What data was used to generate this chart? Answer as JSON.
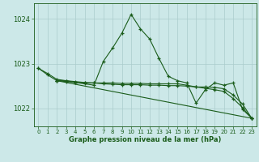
{
  "xlabel": "Graphe pression niveau de la mer (hPa)",
  "bg_color": "#cce8e8",
  "grid_color": "#aacccc",
  "line_color": "#1a5c1a",
  "ylim": [
    1021.6,
    1024.35
  ],
  "xlim": [
    -0.5,
    23.5
  ],
  "yticks": [
    1022,
    1023,
    1024
  ],
  "xticks": [
    0,
    1,
    2,
    3,
    4,
    5,
    6,
    7,
    8,
    9,
    10,
    11,
    12,
    13,
    14,
    15,
    16,
    17,
    18,
    19,
    20,
    21,
    22,
    23
  ],
  "series1_x": [
    0,
    1,
    2,
    3,
    4,
    5,
    6,
    7,
    8,
    9,
    10,
    11,
    12,
    13,
    14,
    15,
    16,
    17,
    18,
    19,
    20,
    21,
    22,
    23
  ],
  "series1_y": [
    1022.9,
    1022.75,
    1022.62,
    1022.62,
    1022.58,
    1022.55,
    1022.52,
    1023.05,
    1023.35,
    1023.68,
    1024.1,
    1023.78,
    1023.55,
    1023.12,
    1022.72,
    1022.62,
    1022.57,
    1022.12,
    1022.42,
    1022.57,
    1022.52,
    1022.57,
    1021.98,
    1021.78
  ],
  "series2_x": [
    0,
    1,
    2,
    3,
    4,
    5,
    6,
    7,
    8,
    9,
    10,
    11,
    12,
    13,
    14,
    15,
    16,
    17,
    18,
    19,
    20,
    21,
    22,
    23
  ],
  "series2_y": [
    1022.9,
    1022.78,
    1022.65,
    1022.62,
    1022.6,
    1022.58,
    1022.57,
    1022.57,
    1022.57,
    1022.56,
    1022.56,
    1022.56,
    1022.55,
    1022.55,
    1022.55,
    1022.55,
    1022.52,
    1022.48,
    1022.48,
    1022.47,
    1022.44,
    1022.3,
    1022.1,
    1021.78
  ],
  "series3_x": [
    2,
    3,
    4,
    5,
    6,
    7,
    8,
    9,
    10,
    11,
    12,
    13,
    14,
    15,
    16,
    17,
    18,
    19,
    20,
    21,
    22,
    23
  ],
  "series3_y": [
    1022.62,
    1022.6,
    1022.58,
    1022.57,
    1022.57,
    1022.55,
    1022.54,
    1022.53,
    1022.53,
    1022.53,
    1022.52,
    1022.52,
    1022.51,
    1022.51,
    1022.5,
    1022.48,
    1022.45,
    1022.42,
    1022.38,
    1022.22,
    1022.02,
    1021.78
  ],
  "series4_x": [
    2,
    23
  ],
  "series4_y": [
    1022.62,
    1021.78
  ]
}
